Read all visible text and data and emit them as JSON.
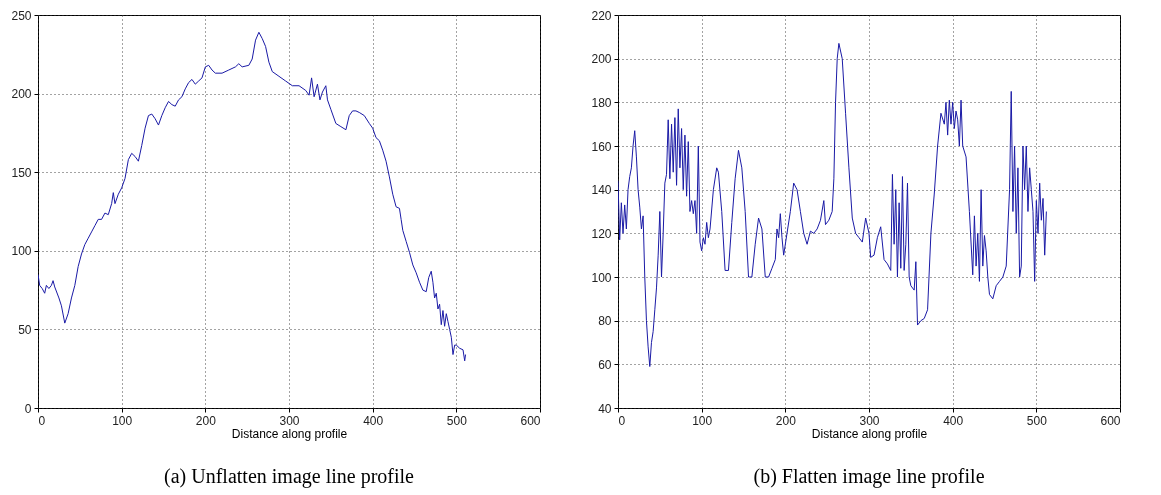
{
  "chart_data": [
    {
      "type": "line",
      "title": "(a) Unflatten image line profile",
      "xlabel": "Distance along profile",
      "xlim": [
        0,
        600
      ],
      "xticks": [
        0,
        100,
        200,
        300,
        400,
        500,
        600
      ],
      "ylim": [
        0,
        250
      ],
      "yticks": [
        0,
        50,
        100,
        150,
        200,
        250
      ],
      "grid": true,
      "line_style": "solid",
      "x": [
        0,
        2,
        5,
        8,
        10,
        13,
        16,
        18,
        20,
        25,
        28,
        32,
        36,
        40,
        44,
        48,
        52,
        56,
        60,
        64,
        68,
        72,
        76,
        80,
        84,
        88,
        90,
        92,
        96,
        100,
        104,
        108,
        112,
        116,
        120,
        124,
        128,
        132,
        136,
        140,
        144,
        148,
        152,
        156,
        160,
        164,
        168,
        172,
        176,
        180,
        184,
        188,
        192,
        196,
        200,
        204,
        208,
        212,
        220,
        228,
        236,
        240,
        244,
        252,
        256,
        260,
        264,
        268,
        272,
        276,
        280,
        288,
        296,
        304,
        312,
        320,
        324,
        327,
        330,
        334,
        337,
        340,
        344,
        346,
        350,
        356,
        362,
        368,
        372,
        376,
        380,
        384,
        390,
        396,
        400,
        404,
        408,
        412,
        416,
        420,
        424,
        428,
        432,
        434,
        436,
        440,
        444,
        448,
        452,
        456,
        460,
        464,
        467,
        470,
        472,
        474,
        476,
        478,
        480,
        482,
        484,
        486,
        488,
        490,
        492,
        494,
        496,
        498,
        500,
        504,
        508,
        510,
        511
      ],
      "series": [
        {
          "color": "#1a1aa6",
          "values": [
            85,
            78,
            76,
            73,
            78,
            76,
            78,
            81,
            77,
            70,
            65,
            54,
            60,
            70,
            78,
            90,
            98,
            104,
            108,
            112,
            116,
            120,
            120,
            124,
            123,
            130,
            137,
            130,
            136,
            140,
            146,
            158,
            162,
            160,
            157,
            167,
            178,
            186,
            187,
            184,
            180,
            186,
            191,
            195,
            193,
            192,
            196,
            198,
            203,
            207,
            209,
            206,
            208,
            210,
            217,
            218,
            215,
            213,
            213,
            215,
            217,
            219,
            217,
            218,
            222,
            234,
            239,
            235,
            230,
            220,
            214,
            211,
            208,
            205,
            205,
            202,
            199,
            210,
            198,
            206,
            196,
            201,
            205,
            196,
            190,
            181,
            179,
            177,
            186,
            189,
            189,
            188,
            186,
            181,
            178,
            172,
            170,
            164,
            157,
            147,
            136,
            128,
            127,
            120,
            113,
            106,
            99,
            91,
            86,
            80,
            75,
            74,
            83,
            87,
            80,
            70,
            73,
            63,
            66,
            53,
            62,
            52,
            60,
            55,
            50,
            45,
            34,
            40,
            40,
            38,
            37,
            30,
            34
          ]
        }
      ]
    },
    {
      "type": "line",
      "title": "(b) Flatten image line profile",
      "xlabel": "Distance along profile",
      "xlim": [
        0,
        600
      ],
      "xticks": [
        0,
        100,
        200,
        300,
        400,
        500,
        600
      ],
      "ylim": [
        40,
        220
      ],
      "yticks": [
        40,
        60,
        80,
        100,
        120,
        140,
        160,
        180,
        200,
        220
      ],
      "grid": true,
      "line_style": "solid",
      "x": [
        0,
        2,
        4,
        6,
        8,
        10,
        12,
        14,
        16,
        18,
        20,
        22,
        24,
        26,
        28,
        30,
        32,
        34,
        36,
        38,
        40,
        42,
        44,
        46,
        48,
        50,
        52,
        54,
        56,
        58,
        60,
        62,
        64,
        66,
        68,
        70,
        72,
        74,
        76,
        78,
        80,
        82,
        84,
        86,
        88,
        90,
        92,
        94,
        96,
        98,
        100,
        102,
        104,
        106,
        108,
        110,
        114,
        118,
        120,
        124,
        128,
        132,
        136,
        140,
        144,
        148,
        152,
        156,
        160,
        164,
        168,
        172,
        176,
        180,
        184,
        188,
        190,
        192,
        194,
        196,
        198,
        202,
        206,
        210,
        214,
        218,
        222,
        226,
        230,
        234,
        238,
        242,
        246,
        248,
        252,
        256,
        258,
        260,
        262,
        264,
        268,
        272,
        276,
        280,
        284,
        288,
        292,
        296,
        300,
        302,
        306,
        310,
        314,
        318,
        322,
        326,
        328,
        330,
        332,
        334,
        336,
        338,
        340,
        342,
        344,
        346,
        348,
        350,
        354,
        356,
        358,
        362,
        366,
        370,
        374,
        378,
        382,
        386,
        390,
        392,
        394,
        396,
        398,
        400,
        402,
        404,
        406,
        408,
        410,
        412,
        416,
        420,
        424,
        426,
        428,
        430,
        432,
        434,
        436,
        438,
        440,
        442,
        444,
        448,
        452,
        456,
        460,
        464,
        468,
        470,
        472,
        474,
        476,
        478,
        480,
        482,
        484,
        486,
        488,
        490,
        492,
        494,
        496,
        498,
        500,
        502,
        504,
        506,
        508,
        510,
        512
      ],
      "series": [
        {
          "color": "#1a1aa6",
          "values": [
            144,
            117,
            134,
            120,
            133,
            122,
            140,
            146,
            150,
            160,
            167,
            155,
            140,
            132,
            122,
            128,
            100,
            80,
            68,
            59,
            70,
            75,
            85,
            95,
            110,
            130,
            100,
            120,
            143,
            147,
            172,
            145,
            170,
            148,
            173,
            142,
            177,
            150,
            168,
            140,
            165,
            137,
            162,
            130,
            135,
            129,
            135,
            120,
            160,
            116,
            112,
            118,
            115,
            125,
            118,
            122,
            140,
            150,
            148,
            130,
            103,
            103,
            125,
            145,
            158,
            150,
            130,
            100,
            100,
            115,
            127,
            122,
            100,
            100,
            104,
            108,
            122,
            118,
            129,
            118,
            110,
            120,
            130,
            143,
            140,
            130,
            120,
            115,
            121,
            120,
            122,
            126,
            135,
            124,
            126,
            130,
            145,
            180,
            200,
            207,
            200,
            175,
            150,
            127,
            120,
            118,
            116,
            127,
            120,
            109,
            110,
            118,
            123,
            108,
            106,
            103,
            147,
            115,
            140,
            100,
            134,
            104,
            146,
            103,
            115,
            143,
            100,
            96,
            94,
            107,
            78,
            80,
            81,
            85,
            120,
            138,
            160,
            175,
            170,
            180,
            165,
            181,
            170,
            180,
            168,
            176,
            172,
            160,
            181,
            160,
            155,
            130,
            101,
            128,
            105,
            120,
            98,
            140,
            105,
            119,
            112,
            100,
            92,
            90,
            96,
            98,
            100,
            105,
            140,
            185,
            130,
            160,
            120,
            150,
            100,
            105,
            160,
            140,
            160,
            130,
            150,
            140,
            130,
            98,
            135,
            120,
            143,
            126,
            136,
            110,
            130
          ]
        }
      ]
    }
  ]
}
